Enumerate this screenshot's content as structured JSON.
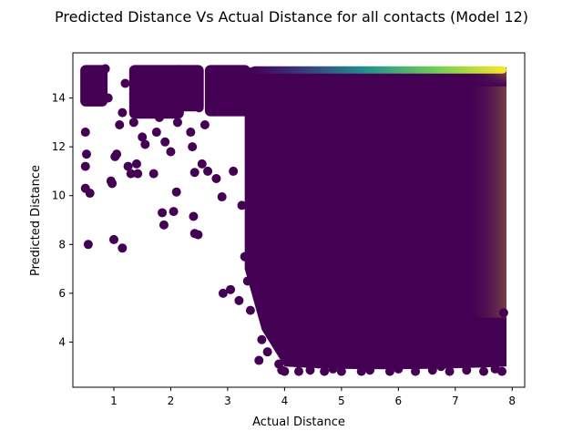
{
  "chart_data": {
    "type": "scatter",
    "title": "Predicted Distance Vs Actual Distance for all contacts (Model 12)",
    "xlabel": "Actual Distance",
    "ylabel": "Predicted Distance",
    "xlim": [
      0.28,
      8.22
    ],
    "ylim": [
      2.15,
      15.85
    ],
    "xticks": [
      1,
      2,
      3,
      4,
      5,
      6,
      7,
      8
    ],
    "yticks": [
      4,
      6,
      8,
      10,
      12,
      14
    ],
    "colormap": "viridis",
    "grid": false,
    "legend": "none",
    "colors": {
      "low": "#440154",
      "mid": "#21918c",
      "high": "#fde725"
    },
    "points": [
      {
        "x": 0.55,
        "y": 8.0
      },
      {
        "x": 0.5,
        "y": 10.3
      },
      {
        "x": 0.58,
        "y": 10.1
      },
      {
        "x": 0.5,
        "y": 11.2
      },
      {
        "x": 0.52,
        "y": 11.7
      },
      {
        "x": 0.5,
        "y": 12.6
      },
      {
        "x": 0.55,
        "y": 13.9
      },
      {
        "x": 0.5,
        "y": 14.5
      },
      {
        "x": 0.6,
        "y": 15.1
      },
      {
        "x": 0.7,
        "y": 14.8
      },
      {
        "x": 0.75,
        "y": 14.3
      },
      {
        "x": 0.85,
        "y": 15.2
      },
      {
        "x": 0.9,
        "y": 14.0
      },
      {
        "x": 0.95,
        "y": 10.6
      },
      {
        "x": 0.97,
        "y": 10.5
      },
      {
        "x": 1.0,
        "y": 8.2
      },
      {
        "x": 1.02,
        "y": 11.6
      },
      {
        "x": 1.05,
        "y": 11.7
      },
      {
        "x": 1.1,
        "y": 12.9
      },
      {
        "x": 1.15,
        "y": 7.85
      },
      {
        "x": 1.15,
        "y": 13.4
      },
      {
        "x": 1.2,
        "y": 14.6
      },
      {
        "x": 1.25,
        "y": 11.2
      },
      {
        "x": 1.3,
        "y": 10.9
      },
      {
        "x": 1.35,
        "y": 13.0
      },
      {
        "x": 1.4,
        "y": 11.3
      },
      {
        "x": 1.42,
        "y": 10.9
      },
      {
        "x": 1.45,
        "y": 13.8
      },
      {
        "x": 1.5,
        "y": 12.4
      },
      {
        "x": 1.55,
        "y": 12.1
      },
      {
        "x": 1.6,
        "y": 13.5
      },
      {
        "x": 1.7,
        "y": 10.9
      },
      {
        "x": 1.75,
        "y": 12.6
      },
      {
        "x": 1.8,
        "y": 13.2
      },
      {
        "x": 1.85,
        "y": 9.3
      },
      {
        "x": 1.88,
        "y": 8.8
      },
      {
        "x": 1.9,
        "y": 12.2
      },
      {
        "x": 1.95,
        "y": 13.7
      },
      {
        "x": 2.0,
        "y": 11.8
      },
      {
        "x": 2.05,
        "y": 9.35
      },
      {
        "x": 2.1,
        "y": 10.15
      },
      {
        "x": 2.12,
        "y": 13.0
      },
      {
        "x": 2.2,
        "y": 14.2
      },
      {
        "x": 2.35,
        "y": 12.6
      },
      {
        "x": 2.38,
        "y": 12.0
      },
      {
        "x": 2.4,
        "y": 9.15
      },
      {
        "x": 2.42,
        "y": 8.45
      },
      {
        "x": 2.48,
        "y": 8.4
      },
      {
        "x": 2.42,
        "y": 10.95
      },
      {
        "x": 2.5,
        "y": 13.6
      },
      {
        "x": 2.55,
        "y": 11.3
      },
      {
        "x": 2.6,
        "y": 12.9
      },
      {
        "x": 2.65,
        "y": 11.0
      },
      {
        "x": 2.75,
        "y": 13.5
      },
      {
        "x": 2.8,
        "y": 10.7
      },
      {
        "x": 2.9,
        "y": 9.95
      },
      {
        "x": 2.92,
        "y": 6.0
      },
      {
        "x": 3.05,
        "y": 6.15
      },
      {
        "x": 3.1,
        "y": 11.0
      },
      {
        "x": 3.2,
        "y": 5.7
      },
      {
        "x": 3.25,
        "y": 9.6
      },
      {
        "x": 3.3,
        "y": 7.5
      },
      {
        "x": 3.35,
        "y": 6.5
      },
      {
        "x": 3.4,
        "y": 5.3
      },
      {
        "x": 3.55,
        "y": 3.25
      },
      {
        "x": 3.6,
        "y": 4.1
      },
      {
        "x": 3.7,
        "y": 3.6
      },
      {
        "x": 3.8,
        "y": 4.3
      },
      {
        "x": 3.9,
        "y": 3.1
      },
      {
        "x": 3.95,
        "y": 2.85
      },
      {
        "x": 4.0,
        "y": 2.8
      },
      {
        "x": 4.1,
        "y": 3.3
      },
      {
        "x": 4.25,
        "y": 2.8
      },
      {
        "x": 4.3,
        "y": 3.9
      },
      {
        "x": 4.45,
        "y": 2.85
      },
      {
        "x": 4.6,
        "y": 3.1
      },
      {
        "x": 4.7,
        "y": 2.8
      },
      {
        "x": 4.85,
        "y": 2.9
      },
      {
        "x": 5.0,
        "y": 2.8
      },
      {
        "x": 5.2,
        "y": 3.2
      },
      {
        "x": 5.35,
        "y": 2.8
      },
      {
        "x": 5.5,
        "y": 2.85
      },
      {
        "x": 5.7,
        "y": 3.4
      },
      {
        "x": 5.85,
        "y": 2.8
      },
      {
        "x": 6.0,
        "y": 2.9
      },
      {
        "x": 6.15,
        "y": 3.1
      },
      {
        "x": 6.3,
        "y": 2.8
      },
      {
        "x": 6.45,
        "y": 3.8
      },
      {
        "x": 6.6,
        "y": 2.85
      },
      {
        "x": 6.75,
        "y": 3.0
      },
      {
        "x": 6.9,
        "y": 2.8
      },
      {
        "x": 7.05,
        "y": 3.5
      },
      {
        "x": 7.2,
        "y": 2.85
      },
      {
        "x": 7.35,
        "y": 4.1
      },
      {
        "x": 7.5,
        "y": 2.8
      },
      {
        "x": 7.6,
        "y": 3.2
      },
      {
        "x": 7.7,
        "y": 2.9
      },
      {
        "x": 7.78,
        "y": 4.6
      },
      {
        "x": 7.82,
        "y": 2.8
      },
      {
        "x": 7.85,
        "y": 5.2
      }
    ],
    "clusters": [
      {
        "x": 0.65,
        "y_low": 13.8,
        "y_high": 15.2
      },
      {
        "x": 1.75,
        "y_low": 13.3,
        "y_high": 15.2
      },
      {
        "x": 2.3,
        "y_low": 13.6,
        "y_high": 15.2
      },
      {
        "x": 3.0,
        "y_low": 13.4,
        "y_high": 15.2
      }
    ],
    "dense_region": {
      "x_start": 3.3,
      "x_end": 7.9,
      "y_bottom": 3.0,
      "y_top": 15.25,
      "top_band": [
        15.0,
        15.3
      ]
    }
  }
}
